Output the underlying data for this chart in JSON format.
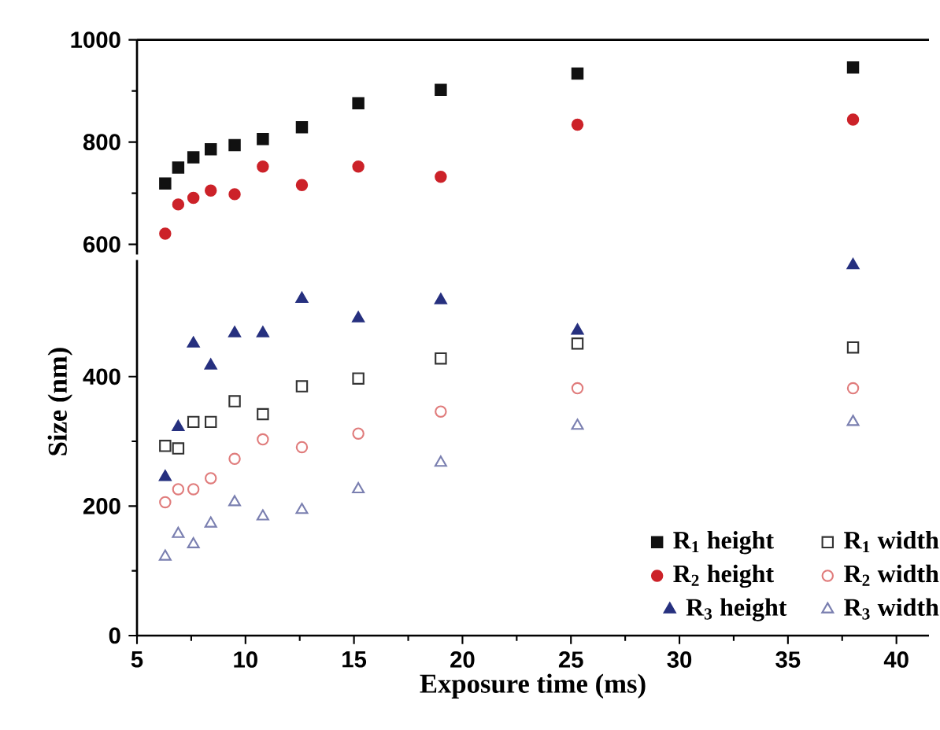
{
  "chart_data": [
    {
      "type": "scatter",
      "xlim": [
        5,
        41.5
      ],
      "ylim": [
        580,
        1000
      ],
      "yticks": [
        600,
        800,
        1000
      ],
      "tick_labels": "y",
      "legend": "bottom right",
      "series": [
        {
          "name": "R$_{1}$ height",
          "color": "#111111",
          "marker": "square",
          "x": [
            6.3,
            6.9,
            7.6,
            8.4,
            9.5,
            10.8,
            12.6,
            15.2,
            19,
            25.3,
            38
          ],
          "values": [
            719,
            750,
            770,
            786,
            794,
            806,
            829,
            876,
            902,
            934,
            946
          ]
        },
        {
          "name": "R$_{2}$ height",
          "color": "#cc2229",
          "marker": "circle",
          "x": [
            6.3,
            6.9,
            7.6,
            8.4,
            9.5,
            10.8,
            12.6,
            15.2,
            19,
            25.3,
            38
          ],
          "values": [
            621,
            678,
            691,
            705,
            698,
            752,
            716,
            752,
            732,
            834,
            844
          ]
        }
      ]
    },
    {
      "type": "scatter",
      "xlabel": "Exposure time (ms)",
      "ylabel": "Size (nm)",
      "xlim": [
        5,
        41.5
      ],
      "ylim": [
        0,
        580
      ],
      "xticks": [
        5,
        10,
        15,
        20,
        25,
        30,
        35,
        40
      ],
      "yticks": [
        0,
        200,
        400
      ],
      "legend": "bottom right",
      "series": [
        {
          "name": "R$_{1}$ width",
          "color": "#333333",
          "marker": "square",
          "x": [
            6.3,
            6.9,
            7.6,
            8.4,
            9.5,
            10.8,
            12.6,
            15.2,
            19,
            25.3,
            38
          ],
          "values": [
            293,
            289,
            330,
            330,
            362,
            342,
            385,
            397,
            428,
            451,
            445
          ]
        },
        {
          "name": "R$_{2}$ width",
          "color": "#e07c7c",
          "marker": "circle",
          "x": [
            6.3,
            6.9,
            7.6,
            8.4,
            9.5,
            10.8,
            12.6,
            15.2,
            19,
            25.3,
            38
          ],
          "values": [
            206,
            226,
            226,
            243,
            273,
            303,
            291,
            312,
            346,
            382,
            382
          ]
        },
        {
          "name": "R$_{3}$ height",
          "color": "#26307f",
          "marker": "triangle",
          "x": [
            6.3,
            6.9,
            7.6,
            8.4,
            9.5,
            10.8,
            12.6,
            15.2,
            19,
            25.3,
            38
          ],
          "values": [
            245,
            322,
            451,
            417,
            467,
            467,
            520,
            490,
            518,
            471,
            572
          ]
        },
        {
          "name": "R$_{3}$ width",
          "color": "#7a7fb0",
          "marker": "triangle",
          "x": [
            6.3,
            6.9,
            7.6,
            8.4,
            9.5,
            10.8,
            12.6,
            15.2,
            19,
            25.3,
            38
          ],
          "values": [
            122,
            157,
            141,
            173,
            206,
            184,
            194,
            226,
            267,
            324,
            330
          ]
        }
      ]
    }
  ]
}
